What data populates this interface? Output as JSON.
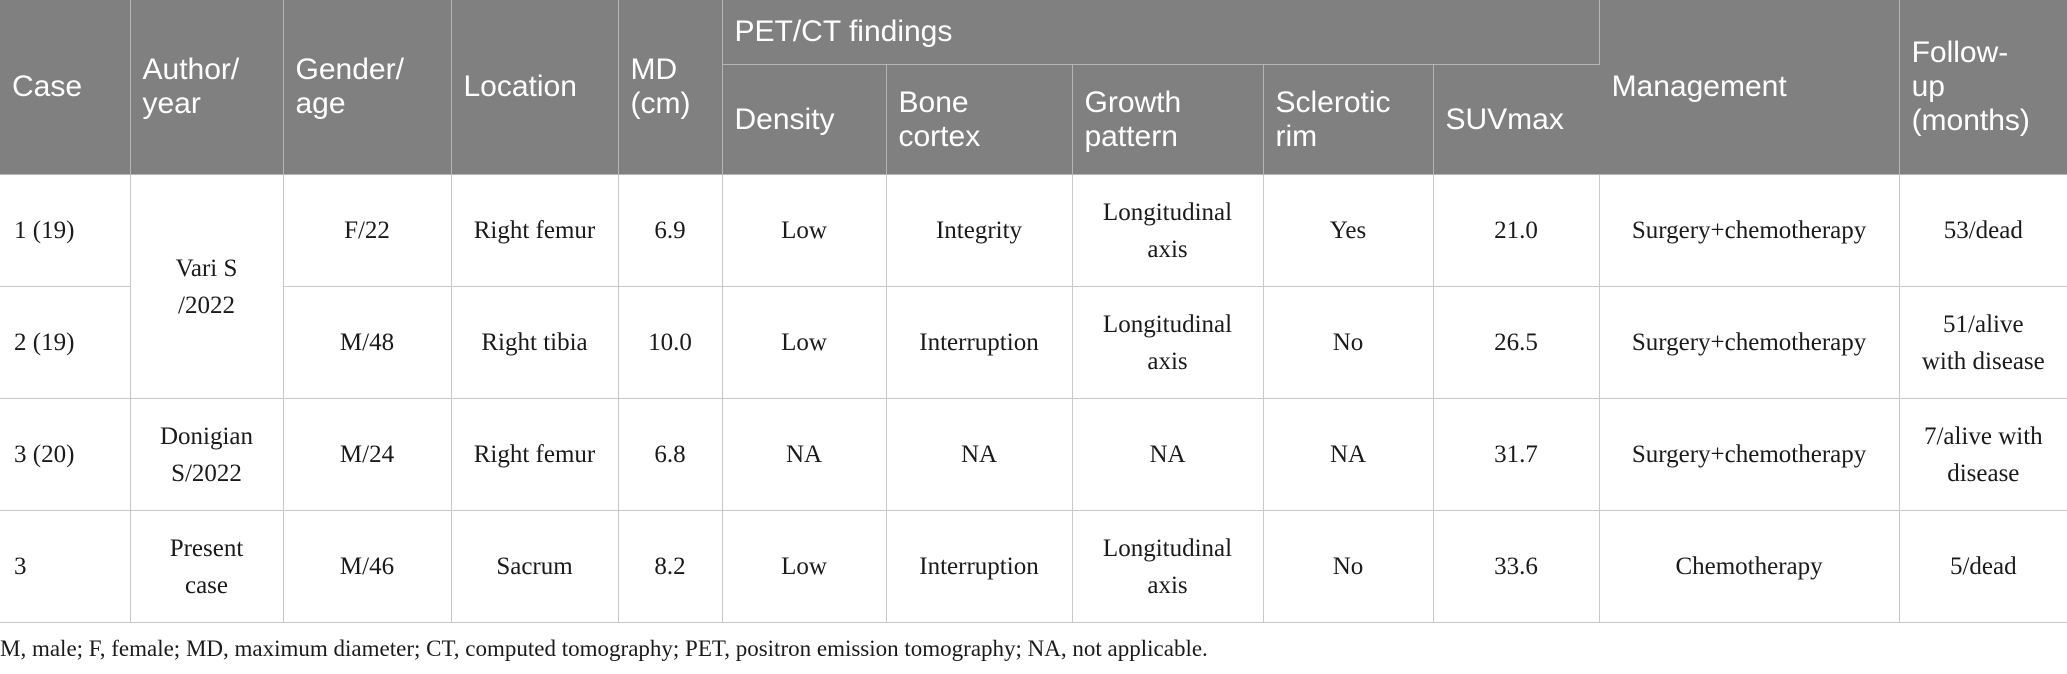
{
  "table": {
    "headers": {
      "case": "Case",
      "author_year": "Author/\nyear",
      "gender_age": "Gender/\nage",
      "location": "Location",
      "md": "MD\n(cm)",
      "petct_group": "PET/CT findings",
      "density": "Density",
      "bone_cortex": "Bone\ncortex",
      "growth_pattern": "Growth\npattern",
      "sclerotic_rim": "Sclerotic\nrim",
      "suvmax": "SUVmax",
      "management": "Management",
      "follow_up": "Follow-\nup\n(months)"
    },
    "rows": [
      {
        "case": "1 (19)",
        "author": "Vari S\n/2022",
        "gender_age": "F/22",
        "location": "Right femur",
        "md": "6.9",
        "density": "Low",
        "bone_cortex": "Integrity",
        "growth_pattern": "Longitudinal\naxis",
        "sclerotic_rim": "Yes",
        "suvmax": "21.0",
        "management": "Surgery+chemotherapy",
        "follow_up": "53/dead"
      },
      {
        "case": "2 (19)",
        "author": "",
        "gender_age": "M/48",
        "location": "Right tibia",
        "md": "10.0",
        "density": "Low",
        "bone_cortex": "Interruption",
        "growth_pattern": "Longitudinal\naxis",
        "sclerotic_rim": "No",
        "suvmax": "26.5",
        "management": "Surgery+chemotherapy",
        "follow_up": "51/alive\nwith disease"
      },
      {
        "case": "3 (20)",
        "author": "Donigian\nS/2022",
        "gender_age": "M/24",
        "location": "Right femur",
        "md": "6.8",
        "density": "NA",
        "bone_cortex": "NA",
        "growth_pattern": "NA",
        "sclerotic_rim": "NA",
        "suvmax": "31.7",
        "management": "Surgery+chemotherapy",
        "follow_up": "7/alive with\ndisease"
      },
      {
        "case": "3",
        "author": "Present\ncase",
        "gender_age": "M/46",
        "location": "Sacrum",
        "md": "8.2",
        "density": "Low",
        "bone_cortex": "Interruption",
        "growth_pattern": "Longitudinal\naxis",
        "sclerotic_rim": "No",
        "suvmax": "33.6",
        "management": "Chemotherapy",
        "follow_up": "5/dead"
      }
    ],
    "footnote": "M, male; F, female; MD, maximum diameter; CT, computed tomography; PET, positron emission tomography; NA, not applicable."
  },
  "colors": {
    "header_bg": "#7f807f",
    "header_text": "#ffffff",
    "border": "#c8c8c8"
  }
}
